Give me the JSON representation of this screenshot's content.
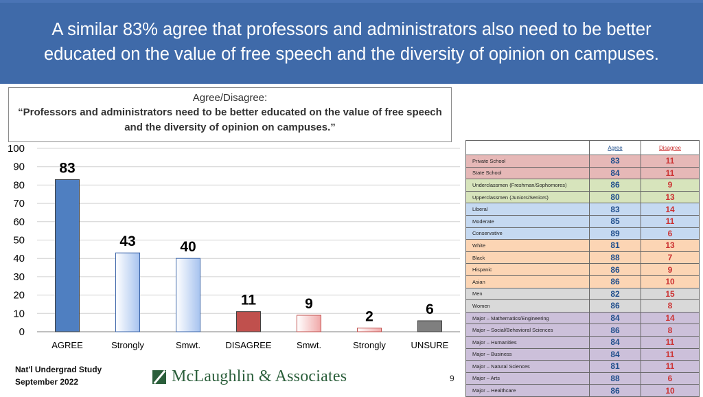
{
  "header": {
    "title": "A similar 83% agree that professors and administrators also need to be better educated on the value of free speech and the diversity of opinion on campuses."
  },
  "question": {
    "title": "Agree/Disagree:",
    "text": "“Professors and administrators need to be better educated on the value of free speech and the diversity of opinion on campuses.”"
  },
  "chart_data": {
    "type": "bar",
    "categories": [
      "AGREE",
      "Strongly",
      "Smwt.",
      "DISAGREE",
      "Smwt.",
      "Strongly",
      "UNSURE"
    ],
    "values": [
      83,
      43,
      40,
      11,
      9,
      2,
      6
    ],
    "ylim": [
      0,
      100
    ],
    "yticks": [
      0,
      10,
      20,
      30,
      40,
      50,
      60,
      70,
      80,
      90,
      100
    ],
    "grid": true,
    "bar_colors": [
      "#4f7fc1",
      "#c9d9f5",
      "#c9d9f5",
      "#c0504d",
      "#f4c7c7",
      "#f4c7c7",
      "#7f7f7f"
    ],
    "subgroup_table": {
      "columns": [
        "Agree",
        "Disagree"
      ],
      "rows": [
        {
          "label": "Private School",
          "agree": 83,
          "disagree": 11,
          "color": "#e6b8b7"
        },
        {
          "label": "State School",
          "agree": 84,
          "disagree": 11,
          "color": "#e6b8b7"
        },
        {
          "label": "Underclassmen (Freshman/Sophomores)",
          "agree": 86,
          "disagree": 9,
          "color": "#d7e4bc"
        },
        {
          "label": "Upperclassmen (Juniors/Seniors)",
          "agree": 80,
          "disagree": 13,
          "color": "#d7e4bc"
        },
        {
          "label": "Liberal",
          "agree": 83,
          "disagree": 14,
          "color": "#c5d9f1"
        },
        {
          "label": "Moderate",
          "agree": 85,
          "disagree": 11,
          "color": "#c5d9f1"
        },
        {
          "label": "Conservative",
          "agree": 89,
          "disagree": 6,
          "color": "#c5d9f1"
        },
        {
          "label": "White",
          "agree": 81,
          "disagree": 13,
          "color": "#fcd5b4"
        },
        {
          "label": "Black",
          "agree": 88,
          "disagree": 7,
          "color": "#fcd5b4"
        },
        {
          "label": "Hispanic",
          "agree": 86,
          "disagree": 9,
          "color": "#fcd5b4"
        },
        {
          "label": "Asian",
          "agree": 86,
          "disagree": 10,
          "color": "#fcd5b4"
        },
        {
          "label": "Men",
          "agree": 82,
          "disagree": 15,
          "color": "#d9d9d9"
        },
        {
          "label": "Women",
          "agree": 86,
          "disagree": 8,
          "color": "#d9d9d9"
        },
        {
          "label": "Major – Mathematics/Engineering",
          "agree": 84,
          "disagree": 14,
          "color": "#ccc0da"
        },
        {
          "label": "Major – Social/Behavioral Sciences",
          "agree": 86,
          "disagree": 8,
          "color": "#ccc0da"
        },
        {
          "label": "Major – Humanities",
          "agree": 84,
          "disagree": 11,
          "color": "#ccc0da"
        },
        {
          "label": "Major – Business",
          "agree": 84,
          "disagree": 11,
          "color": "#ccc0da"
        },
        {
          "label": "Major – Natural Sciences",
          "agree": 81,
          "disagree": 11,
          "color": "#ccc0da"
        },
        {
          "label": "Major – Arts",
          "agree": 88,
          "disagree": 6,
          "color": "#ccc0da"
        },
        {
          "label": "Major – Healthcare",
          "agree": 86,
          "disagree": 10,
          "color": "#ccc0da"
        }
      ]
    }
  },
  "footer": {
    "study_line1": "Nat'l Undergrad Study",
    "study_line2": "September 2022",
    "logo_text": "McLaughlin & Associates",
    "page_number": "9"
  }
}
